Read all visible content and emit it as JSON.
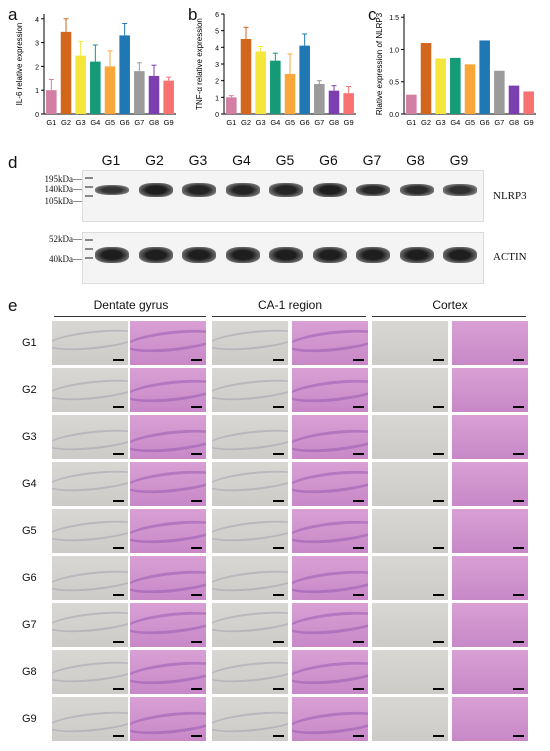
{
  "panels": {
    "a": "a",
    "b": "b",
    "c": "c",
    "d": "d",
    "e": "e"
  },
  "chart_data": [
    {
      "type": "bar",
      "panel": "a",
      "ylabel": "IL-6 relative expression",
      "categories": [
        "G1",
        "G2",
        "G3",
        "G4",
        "G5",
        "G6",
        "G7",
        "G8",
        "G9"
      ],
      "values": [
        1.0,
        3.45,
        2.45,
        2.2,
        2.0,
        3.3,
        1.8,
        1.6,
        1.4
      ],
      "errors": [
        0.45,
        0.55,
        0.6,
        0.7,
        0.65,
        0.5,
        0.35,
        0.45,
        0.15
      ],
      "ylim": [
        0,
        4.2
      ],
      "yticks": [
        "0",
        "1",
        "2",
        "3",
        "4"
      ],
      "colors": [
        "#d37fa3",
        "#d2661d",
        "#f4e63a",
        "#149a77",
        "#f9a63b",
        "#1f78b4",
        "#9b9b9b",
        "#7b3fb0",
        "#f97272"
      ]
    },
    {
      "type": "bar",
      "panel": "b",
      "ylabel": "TNF-α relative expression",
      "categories": [
        "G1",
        "G2",
        "G3",
        "G4",
        "G5",
        "G6",
        "G7",
        "G8",
        "G9"
      ],
      "values": [
        1.0,
        4.5,
        3.75,
        3.2,
        2.4,
        4.1,
        1.8,
        1.4,
        1.25
      ],
      "errors": [
        0.1,
        0.7,
        0.3,
        0.45,
        1.2,
        0.7,
        0.2,
        0.3,
        0.4
      ],
      "ylim": [
        0,
        6
      ],
      "yticks": [
        "0",
        "1",
        "2",
        "3",
        "4",
        "5",
        "6"
      ],
      "colors": [
        "#d37fa3",
        "#d2661d",
        "#f4e63a",
        "#149a77",
        "#f9a63b",
        "#1f78b4",
        "#9b9b9b",
        "#7b3fb0",
        "#f97272"
      ]
    },
    {
      "type": "bar",
      "panel": "c",
      "ylabel": "Rlative expression of NLRP3",
      "categories": [
        "G1",
        "G2",
        "G3",
        "G4",
        "G5",
        "G6",
        "G7",
        "G8",
        "G9"
      ],
      "values": [
        0.3,
        1.1,
        0.86,
        0.87,
        0.77,
        1.14,
        0.67,
        0.44,
        0.35
      ],
      "ylim": [
        0,
        1.55
      ],
      "yticks": [
        "0.0",
        "0.5",
        "1.0",
        "1.5"
      ],
      "colors": [
        "#d37fa3",
        "#d2661d",
        "#f4e63a",
        "#149a77",
        "#f9a63b",
        "#1f78b4",
        "#9b9b9b",
        "#7b3fb0",
        "#f97272"
      ]
    }
  ],
  "blot": {
    "lanes": [
      "G1",
      "G2",
      "G3",
      "G4",
      "G5",
      "G6",
      "G7",
      "G8",
      "G9"
    ],
    "nlrp3_label": "NLRP3",
    "actin_label": "ACTIN",
    "top_markers": [
      "195kDa—",
      "140kDa—",
      "105kDa—"
    ],
    "bottom_markers": [
      "52kDa—",
      "40kDa—"
    ],
    "nlrp3_intensity": [
      0.45,
      1.0,
      0.85,
      0.85,
      0.85,
      1.0,
      0.75,
      0.7,
      0.55
    ]
  },
  "histology": {
    "regions": [
      "Dentate gyrus",
      "CA-1 region",
      "Cortex"
    ],
    "rows": [
      "G1",
      "G2",
      "G3",
      "G4",
      "G5",
      "G6",
      "G7",
      "G8",
      "G9"
    ]
  }
}
